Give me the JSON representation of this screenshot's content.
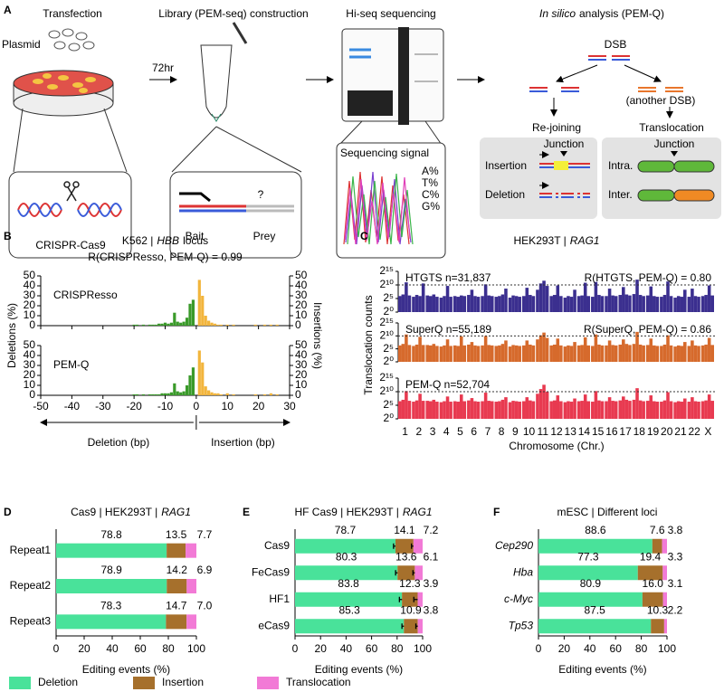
{
  "diagram": {
    "panel": "A",
    "steps": [
      "Transfection",
      "Library (PEM-seq) construction",
      "Hi-seq sequencing"
    ],
    "step4_italic": "In silico",
    "step4": "analysis (PEM-Q)",
    "plasmid": "Plasmid",
    "cas9": "CRISPR-Cas9",
    "time": "72hr",
    "bait": "Bait",
    "unknown": "?",
    "prey": "Prey",
    "signal": "Sequencing signal",
    "bases": [
      "A%",
      "T%",
      "C%",
      "G%"
    ],
    "dsb": "DSB",
    "another": "(another DSB)",
    "rejoin": "Re-joining",
    "transloc": "Translocation",
    "junction": [
      "Junction",
      "Junction"
    ],
    "insertion": "Insertion",
    "deletion": "Deletion",
    "intra": "Intra.",
    "inter": "Inter."
  },
  "chart_data": [
    {
      "type": "bar",
      "panel": "B",
      "title_prefix": "K562 |",
      "title_italic": "HBB",
      "title_suffix": "locus",
      "subtitle": "R(CRISPResso, PEM-Q) = 0.99",
      "ylabel": "Deletions (%)",
      "y2label": "Insertions (%)",
      "xlim": [
        -50,
        30
      ],
      "xticks": [
        -50,
        -40,
        -30,
        -20,
        -10,
        0,
        10,
        20,
        30
      ],
      "ylim": [
        0,
        50
      ],
      "yticks": [
        0,
        10,
        20,
        30,
        40,
        50
      ],
      "y2lim": [
        0,
        50
      ],
      "y2ticks": [
        0,
        10,
        20,
        30,
        40,
        50
      ],
      "arrow_labels": [
        "Deletion (bp)",
        "Insertion (bp)"
      ],
      "subplots": [
        {
          "label": "CRISPResso",
          "series": [
            {
              "color": "#3a9a2a",
              "x": [
                -1,
                -2,
                -3,
                -4,
                -5,
                -6,
                -7,
                -8,
                -9,
                -10,
                -11,
                -12,
                -13,
                -14,
                -15,
                -17,
                -19,
                -20
              ],
              "values": [
                26,
                22,
                8,
                4,
                3,
                4,
                13,
                3,
                2,
                3,
                2,
                2,
                1,
                1,
                1,
                1,
                1,
                1
              ]
            },
            {
              "color": "#f2b53c",
              "axis": "y2",
              "x": [
                1,
                2,
                3,
                4,
                5,
                6,
                7,
                8,
                10,
                12,
                19,
                22,
                24,
                26
              ],
              "values": [
                46,
                30,
                10,
                5,
                3,
                2,
                1,
                1,
                1,
                1,
                1,
                1,
                1,
                1
              ]
            }
          ]
        },
        {
          "label": "PEM-Q",
          "series": [
            {
              "color": "#3a9a2a",
              "x": [
                -1,
                -2,
                -3,
                -4,
                -5,
                -6,
                -7,
                -8,
                -9,
                -10,
                -11,
                -12,
                -13,
                -14,
                -15,
                -17,
                -19,
                -20
              ],
              "values": [
                28,
                20,
                10,
                4,
                3,
                4,
                12,
                3,
                2,
                2,
                2,
                1,
                1,
                1,
                1,
                1,
                1,
                1
              ]
            },
            {
              "color": "#f2b53c",
              "axis": "y2",
              "x": [
                1,
                2,
                3,
                4,
                5,
                6,
                7,
                8,
                10,
                12,
                19,
                22,
                24,
                26
              ],
              "values": [
                45,
                33,
                9,
                5,
                3,
                2,
                2,
                1,
                2,
                1,
                1,
                1,
                2,
                1
              ]
            }
          ]
        }
      ]
    },
    {
      "type": "manhattan",
      "panel": "C",
      "title_prefix": "HEK293T |",
      "title_italic": "RAG1",
      "ylabel": "Translocation counts",
      "xlabel": "Chromosome (Chr.)",
      "log_scale": true,
      "ylim": [
        1,
        32768
      ],
      "yticks": [
        {
          "value": 1,
          "label": "2⁰"
        },
        {
          "value": 32,
          "label": "2⁵"
        },
        {
          "value": 1024,
          "label": "2¹⁰"
        },
        {
          "value": 32768,
          "label": "2¹⁵"
        }
      ],
      "hline": 1024,
      "categories": [
        "1",
        "2",
        "3",
        "4",
        "5",
        "6",
        "7",
        "8",
        "9",
        "10",
        "11",
        "12",
        "13",
        "14",
        "15",
        "16",
        "17",
        "18",
        "19",
        "20",
        "21",
        "22",
        "X"
      ],
      "series": [
        {
          "name": "HTGTS n=31,837",
          "annotation": "R(HTGTS, PEM-Q) = 0.80",
          "color": "#3b2f8f",
          "values": [
            [
              60,
              90,
              2000,
              70
            ],
            [
              50,
              80,
              60,
              1500
            ],
            [
              70,
              60,
              90,
              50
            ],
            [
              40,
              60,
              800,
              50
            ],
            [
              60,
              50,
              70,
              60
            ],
            [
              80,
              300,
              60,
              50
            ],
            [
              60,
              1200,
              70,
              60
            ],
            [
              50,
              60,
              90,
              400
            ],
            [
              40,
              70,
              60,
              50
            ],
            [
              60,
              500,
              80,
              60
            ],
            [
              300,
              1500,
              3000,
              800
            ],
            [
              60,
              80,
              900,
              60
            ],
            [
              40,
              60,
              50,
              300
            ],
            [
              60,
              70,
              1800,
              60
            ],
            [
              50,
              2200,
              80,
              60
            ],
            [
              60,
              400,
              70,
              60
            ],
            [
              80,
              600,
              90,
              70
            ],
            [
              100,
              4000,
              80,
              60
            ],
            [
              70,
              700,
              60,
              50
            ],
            [
              50,
              80,
              2500,
              60
            ],
            [
              40,
              60,
              50,
              300
            ],
            [
              50,
              400,
              60,
              50
            ],
            [
              60,
              80,
              900,
              70
            ]
          ]
        },
        {
          "name": "SuperQ n=55,189",
          "annotation": "R(SuperQ, PEM-Q) = 0.86",
          "color": "#d66a2c",
          "values": [
            [
              80,
              120,
              1500,
              90
            ],
            [
              70,
              100,
              800,
              90
            ],
            [
              90,
              80,
              120,
              70
            ],
            [
              60,
              80,
              400,
              70
            ],
            [
              80,
              70,
              900,
              80
            ],
            [
              100,
              200,
              80,
              70
            ],
            [
              80,
              1000,
              90,
              80
            ],
            [
              70,
              80,
              120,
              300
            ],
            [
              60,
              90,
              80,
              70
            ],
            [
              80,
              300,
              100,
              80
            ],
            [
              400,
              1200,
              2500,
              600
            ],
            [
              80,
              100,
              500,
              80
            ],
            [
              60,
              80,
              70,
              200
            ],
            [
              80,
              90,
              700,
              80
            ],
            [
              70,
              1500,
              100,
              80
            ],
            [
              80,
              300,
              90,
              80
            ],
            [
              100,
              400,
              120,
              90
            ],
            [
              120,
              3000,
              100,
              80
            ],
            [
              90,
              500,
              80,
              70
            ],
            [
              70,
              100,
              1200,
              80
            ],
            [
              60,
              80,
              70,
              200
            ],
            [
              70,
              300,
              80,
              70
            ],
            [
              80,
              100,
              600,
              90
            ]
          ]
        },
        {
          "name": "PEM-Q n=52,704",
          "color": "#e83a50",
          "values": [
            [
              90,
              130,
              1200,
              100
            ],
            [
              80,
              110,
              600,
              100
            ],
            [
              100,
              90,
              130,
              80
            ],
            [
              70,
              90,
              300,
              80
            ],
            [
              90,
              80,
              500,
              90
            ],
            [
              110,
              200,
              90,
              80
            ],
            [
              90,
              800,
              100,
              90
            ],
            [
              80,
              90,
              130,
              250
            ],
            [
              70,
              100,
              90,
              80
            ],
            [
              90,
              250,
              110,
              90
            ],
            [
              600,
              2000,
              6000,
              1000
            ],
            [
              90,
              110,
              400,
              90
            ],
            [
              70,
              90,
              80,
              180
            ],
            [
              90,
              100,
              500,
              90
            ],
            [
              80,
              1200,
              110,
              90
            ],
            [
              90,
              250,
              100,
              90
            ],
            [
              110,
              300,
              130,
              100
            ],
            [
              130,
              2500,
              110,
              90
            ],
            [
              100,
              400,
              90,
              80
            ],
            [
              80,
              110,
              900,
              90
            ],
            [
              70,
              90,
              80,
              180
            ],
            [
              80,
              250,
              90,
              80
            ],
            [
              90,
              110,
              500,
              100
            ]
          ]
        }
      ]
    },
    {
      "type": "barh",
      "panel": "D",
      "title_prefix": "Cas9 | HEK293T |",
      "title_italic": "RAG1",
      "xlabel": "Editing events (%)",
      "xlim": [
        0,
        100
      ],
      "xticks": [
        0,
        20,
        40,
        60,
        80,
        100
      ],
      "categories": [
        "Repeat1",
        "Repeat2",
        "Repeat3"
      ],
      "series": [
        {
          "name": "Deletion",
          "color": "#49e29a",
          "values": [
            78.8,
            78.9,
            78.3
          ]
        },
        {
          "name": "Insertion",
          "color": "#a6702c",
          "values": [
            13.5,
            14.2,
            14.7
          ]
        },
        {
          "name": "Translocation",
          "color": "#f27ad6",
          "values": [
            7.7,
            6.9,
            7
          ],
          "value_labels": [
            "7.7",
            "6.9",
            "7.0"
          ]
        }
      ]
    },
    {
      "type": "barh",
      "panel": "E",
      "title_prefix": "HF Cas9 | HEK293T |",
      "title_italic": "RAG1",
      "xlabel": "Editing events (%)",
      "xlim": [
        0,
        100
      ],
      "xticks": [
        0,
        20,
        40,
        60,
        80,
        100
      ],
      "categories": [
        "Cas9",
        "FeCas9",
        "HF1",
        "eCas9"
      ],
      "series": [
        {
          "color": "#49e29a",
          "values": [
            78.7,
            80.3,
            83.8,
            85.3
          ],
          "errors": [
            1.5,
            1.5,
            2,
            1.5
          ]
        },
        {
          "color": "#a6702c",
          "values": [
            14.1,
            13.6,
            12.3,
            10.9
          ],
          "errors": [
            1.5,
            1.5,
            3,
            1.5
          ]
        },
        {
          "color": "#f27ad6",
          "values": [
            7.2,
            6.1,
            3.9,
            3.8
          ]
        }
      ]
    },
    {
      "type": "barh",
      "panel": "F",
      "title_prefix": "mESC | Different loci",
      "xlabel": "Editing events (%)",
      "xlim": [
        0,
        100
      ],
      "xticks": [
        0,
        20,
        40,
        60,
        80,
        100
      ],
      "categories": [
        "Cep290",
        "Hba",
        "c-Myc",
        "Tp53"
      ],
      "categories_italic": true,
      "series": [
        {
          "color": "#49e29a",
          "values": [
            88.6,
            77.3,
            80.9,
            87.5
          ]
        },
        {
          "color": "#a6702c",
          "values": [
            7.6,
            19.4,
            16,
            10.3
          ],
          "value_labels": [
            "7.6",
            "19.4",
            "16.0",
            "10.3"
          ]
        },
        {
          "color": "#f27ad6",
          "values": [
            3.8,
            3.3,
            3.1,
            2.2
          ]
        }
      ]
    }
  ]
}
